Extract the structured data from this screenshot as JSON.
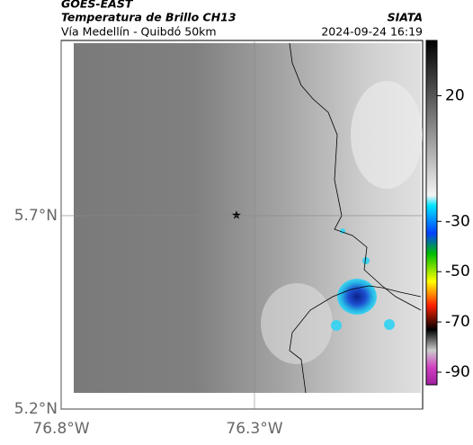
{
  "header": {
    "source": "GOES-EAST",
    "title": "Temperatura de Brillo CH13",
    "brand": "SIATA",
    "subtitle": "Vía Medellín - Quibdó 50km",
    "timestamp": "2024-09-24 16:19"
  },
  "map": {
    "xlim": [
      -76.8,
      -75.865
    ],
    "ylim": [
      5.2,
      6.153
    ],
    "xticks": [
      {
        "value": -76.8,
        "label": "76.8°W"
      },
      {
        "value": -76.3,
        "label": "76.3°W"
      }
    ],
    "yticks": [
      {
        "value": 5.2,
        "label": "5.2°N"
      },
      {
        "value": 5.7,
        "label": "5.7°N"
      }
    ]
  },
  "colorbar": {
    "lim": [
      -95,
      42
    ],
    "ticks": [
      20,
      -30,
      -50,
      -70,
      -90
    ]
  }
}
